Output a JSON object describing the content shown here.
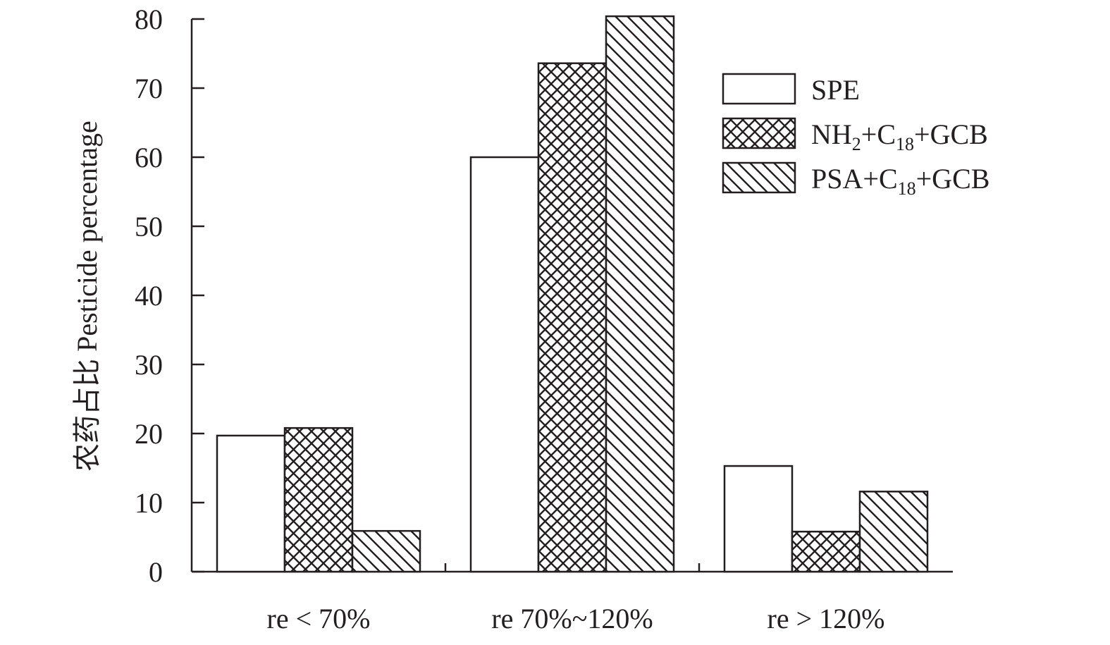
{
  "chart_data": {
    "type": "bar",
    "title": "",
    "xlabel": "",
    "ylabel": "农药占比 Pesticide percentage",
    "ylim": [
      0,
      80
    ],
    "yticks": [
      0,
      10,
      20,
      30,
      40,
      50,
      60,
      70,
      80
    ],
    "categories": [
      "re < 70%",
      "re 70%~120%",
      "re > 120%"
    ],
    "series": [
      {
        "name": "SPE",
        "pattern": "none",
        "values": [
          19.7,
          60.0,
          15.3
        ]
      },
      {
        "name": "NH2+C18+GCB",
        "name_parts": [
          [
            "NH",
            ""
          ],
          [
            "2",
            "sub"
          ],
          [
            "+C",
            ""
          ],
          [
            "18",
            "sub"
          ],
          [
            "+GCB",
            ""
          ]
        ],
        "pattern": "crosshatch",
        "values": [
          20.8,
          73.6,
          5.8
        ]
      },
      {
        "name": "PSA+C18+GCB",
        "name_parts": [
          [
            "PSA+C",
            ""
          ],
          [
            "18",
            "sub"
          ],
          [
            "+GCB",
            ""
          ]
        ],
        "pattern": "diagonal",
        "values": [
          5.9,
          80.4,
          11.6
        ]
      }
    ],
    "legend_position": "top-right",
    "grid": false,
    "colors": {
      "ink": "#231f20",
      "fill": "#ffffff"
    }
  }
}
